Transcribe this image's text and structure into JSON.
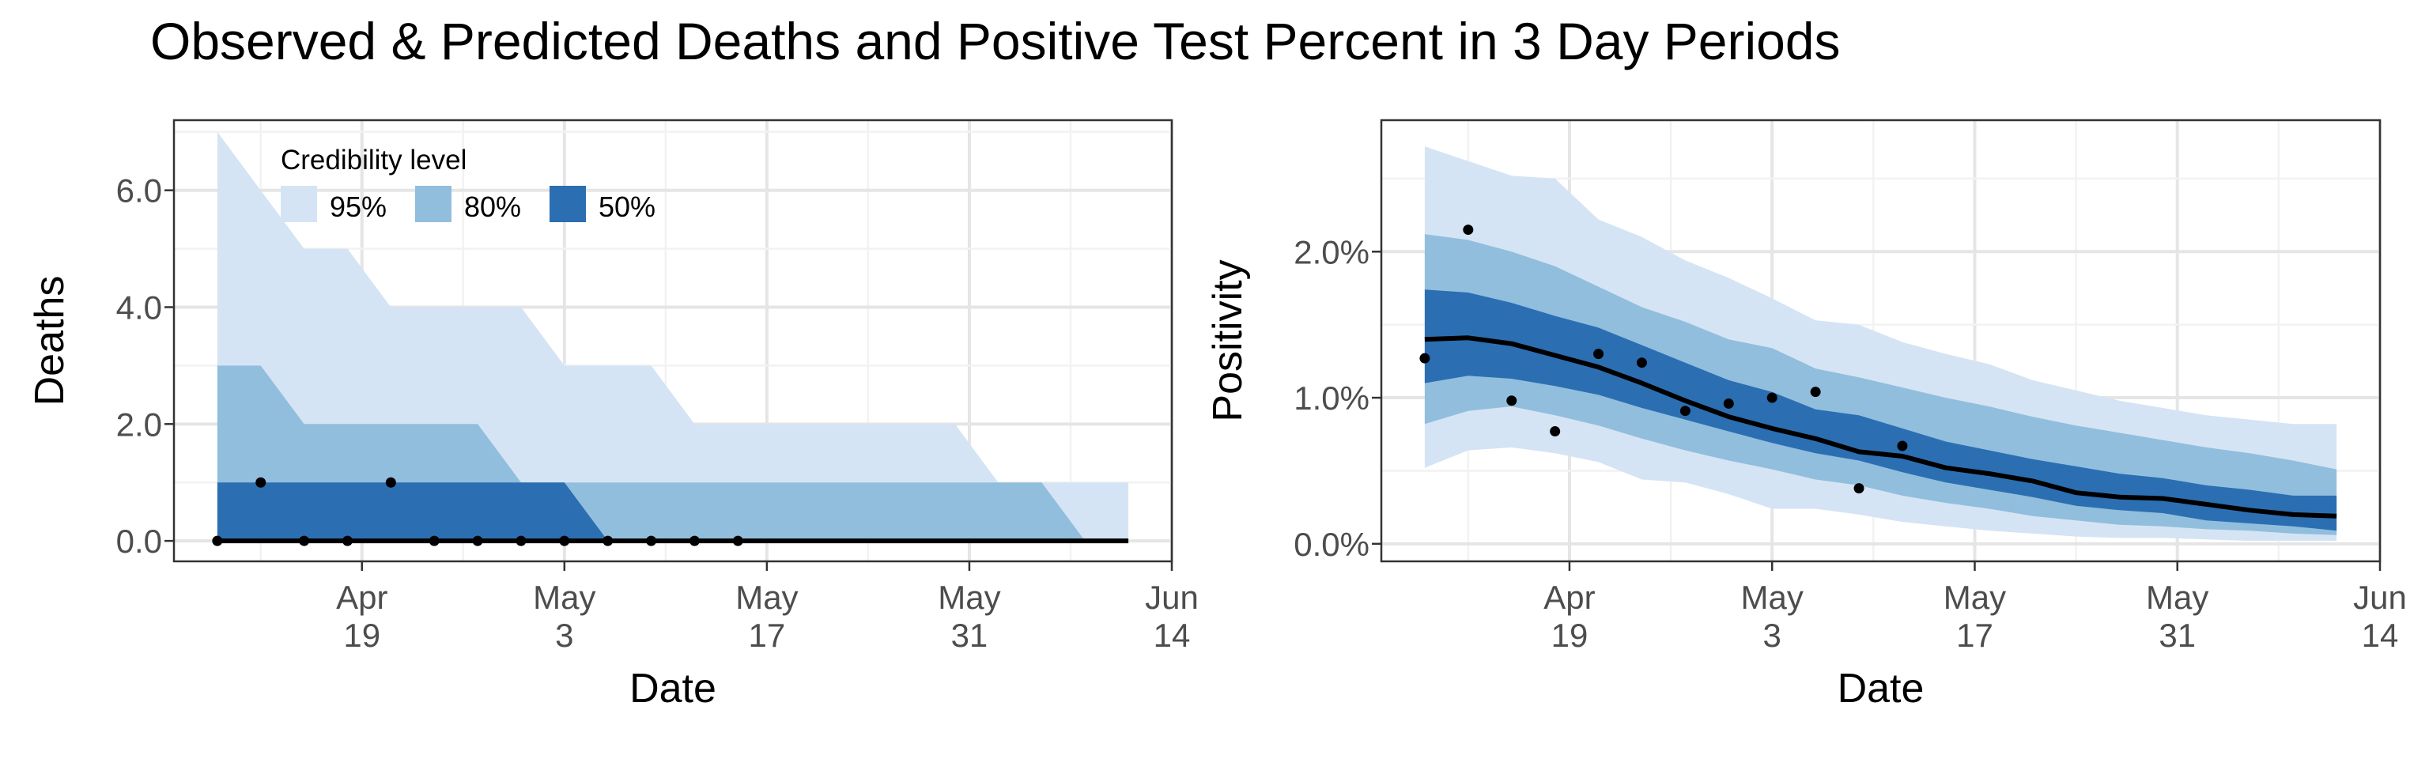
{
  "title": "Observed & Predicted Deaths and Positive Test Percent in 3 Day Periods",
  "colors": {
    "band95": "#d5e4f4",
    "band80": "#92bedd",
    "band50": "#2b6fb2",
    "median": "#000000",
    "points": "#000000",
    "grid_major": "#e5e5e5",
    "grid_minor": "#f2f2f2"
  },
  "chart_data": [
    {
      "type": "area",
      "title": "",
      "xlabel": "Date",
      "ylabel": "Deaths",
      "x_range": [
        "2020-04-06",
        "2020-06-14"
      ],
      "ylim": [
        -0.35,
        7.2
      ],
      "step": true,
      "x_ticks": [
        {
          "date": "2020-04-19",
          "month": "Apr",
          "day": "19"
        },
        {
          "date": "2020-05-03",
          "month": "May",
          "day": "3"
        },
        {
          "date": "2020-05-17",
          "month": "May",
          "day": "17"
        },
        {
          "date": "2020-05-31",
          "month": "May",
          "day": "31"
        },
        {
          "date": "2020-06-14",
          "month": "Jun",
          "day": "14"
        }
      ],
      "y_ticks": [
        {
          "value": 0,
          "label": "0.0"
        },
        {
          "value": 2,
          "label": "2.0"
        },
        {
          "value": 4,
          "label": "4.0"
        },
        {
          "value": 6,
          "label": "6.0"
        }
      ],
      "grid": true,
      "legend": {
        "title": "Credibility level",
        "placement": "top-left inside",
        "items": [
          {
            "label": "95%",
            "color": "#d5e4f4"
          },
          {
            "label": "80%",
            "color": "#92bedd"
          },
          {
            "label": "50%",
            "color": "#2b6fb2"
          }
        ]
      },
      "x": [
        "2020-04-09",
        "2020-04-12",
        "2020-04-15",
        "2020-04-18",
        "2020-04-21",
        "2020-04-24",
        "2020-04-27",
        "2020-04-30",
        "2020-05-03",
        "2020-05-06",
        "2020-05-09",
        "2020-05-12",
        "2020-05-15",
        "2020-05-18",
        "2020-05-21",
        "2020-05-24",
        "2020-05-27",
        "2020-05-30",
        "2020-06-02",
        "2020-06-05",
        "2020-06-08",
        "2020-06-11"
      ],
      "bands": [
        {
          "level": "95%",
          "lower": [
            0,
            0,
            0,
            0,
            0,
            0,
            0,
            0,
            0,
            0,
            0,
            0,
            0,
            0,
            0,
            0,
            0,
            0,
            0,
            0,
            0,
            0
          ],
          "upper": [
            7,
            6,
            5,
            5,
            4,
            4,
            4,
            4,
            3,
            3,
            3,
            2,
            2,
            2,
            2,
            2,
            2,
            2,
            1,
            1,
            1,
            1
          ]
        },
        {
          "level": "80%",
          "lower": [
            0,
            0,
            0,
            0,
            0,
            0,
            0,
            0,
            0,
            0,
            0,
            0,
            0,
            0,
            0,
            0,
            0,
            0,
            0,
            0,
            0,
            0
          ],
          "upper": [
            3,
            3,
            2,
            2,
            2,
            2,
            2,
            1,
            1,
            1,
            1,
            1,
            1,
            1,
            1,
            1,
            1,
            1,
            1,
            1,
            0,
            0
          ]
        },
        {
          "level": "50%",
          "lower": [
            0,
            0,
            0,
            0,
            0,
            0,
            0,
            0,
            0,
            0,
            0,
            0,
            0,
            0,
            0,
            0,
            0,
            0,
            0,
            0,
            0,
            0
          ],
          "upper": [
            1,
            1,
            1,
            1,
            1,
            1,
            1,
            1,
            1,
            0,
            0,
            0,
            0,
            0,
            0,
            0,
            0,
            0,
            0,
            0,
            0,
            0
          ]
        }
      ],
      "median": [
        0,
        0,
        0,
        0,
        0,
        0,
        0,
        0,
        0,
        0,
        0,
        0,
        0,
        0,
        0,
        0,
        0,
        0,
        0,
        0,
        0,
        0
      ],
      "observed": {
        "x": [
          "2020-04-09",
          "2020-04-12",
          "2020-04-15",
          "2020-04-18",
          "2020-04-21",
          "2020-04-24",
          "2020-04-27",
          "2020-04-30",
          "2020-05-03",
          "2020-05-06",
          "2020-05-09",
          "2020-05-12",
          "2020-05-15"
        ],
        "y": [
          0,
          1,
          0,
          0,
          1,
          0,
          0,
          0,
          0,
          0,
          0,
          0,
          0
        ]
      }
    },
    {
      "type": "area",
      "title": "",
      "xlabel": "Date",
      "ylabel": "Positivity",
      "x_range": [
        "2020-04-06",
        "2020-06-14"
      ],
      "ylim": [
        -0.12,
        2.9
      ],
      "step": false,
      "x_ticks": [
        {
          "date": "2020-04-19",
          "month": "Apr",
          "day": "19"
        },
        {
          "date": "2020-05-03",
          "month": "May",
          "day": "3"
        },
        {
          "date": "2020-05-17",
          "month": "May",
          "day": "17"
        },
        {
          "date": "2020-05-31",
          "month": "May",
          "day": "31"
        },
        {
          "date": "2020-06-14",
          "month": "Jun",
          "day": "14"
        }
      ],
      "y_ticks": [
        {
          "value": 0,
          "label": "0.0%"
        },
        {
          "value": 1,
          "label": "1.0%"
        },
        {
          "value": 2,
          "label": "2.0%"
        }
      ],
      "grid": true,
      "x": [
        "2020-04-09",
        "2020-04-12",
        "2020-04-15",
        "2020-04-18",
        "2020-04-21",
        "2020-04-24",
        "2020-04-27",
        "2020-04-30",
        "2020-05-03",
        "2020-05-06",
        "2020-05-09",
        "2020-05-12",
        "2020-05-15",
        "2020-05-18",
        "2020-05-21",
        "2020-05-24",
        "2020-05-27",
        "2020-05-30",
        "2020-06-02",
        "2020-06-05",
        "2020-06-08",
        "2020-06-11"
      ],
      "bands": [
        {
          "level": "95%",
          "lower": [
            0.52,
            0.64,
            0.66,
            0.62,
            0.56,
            0.44,
            0.42,
            0.34,
            0.24,
            0.24,
            0.2,
            0.15,
            0.12,
            0.09,
            0.07,
            0.05,
            0.04,
            0.04,
            0.03,
            0.02,
            0.02,
            0.02
          ],
          "upper": [
            2.72,
            2.62,
            2.52,
            2.5,
            2.22,
            2.1,
            1.94,
            1.82,
            1.68,
            1.53,
            1.5,
            1.38,
            1.3,
            1.23,
            1.12,
            1.05,
            0.98,
            0.93,
            0.88,
            0.85,
            0.82,
            0.82
          ]
        },
        {
          "level": "80%",
          "lower": [
            0.82,
            0.91,
            0.94,
            0.88,
            0.81,
            0.72,
            0.64,
            0.57,
            0.51,
            0.44,
            0.4,
            0.33,
            0.28,
            0.24,
            0.19,
            0.16,
            0.13,
            0.12,
            0.1,
            0.09,
            0.07,
            0.06
          ],
          "upper": [
            2.12,
            2.08,
            2.0,
            1.9,
            1.76,
            1.62,
            1.52,
            1.4,
            1.34,
            1.2,
            1.14,
            1.07,
            1.0,
            0.94,
            0.87,
            0.81,
            0.76,
            0.71,
            0.66,
            0.62,
            0.57,
            0.51
          ]
        },
        {
          "level": "50%",
          "lower": [
            1.1,
            1.15,
            1.13,
            1.08,
            1.02,
            0.93,
            0.85,
            0.77,
            0.69,
            0.62,
            0.57,
            0.49,
            0.42,
            0.37,
            0.32,
            0.26,
            0.23,
            0.21,
            0.16,
            0.14,
            0.12,
            0.09
          ],
          "upper": [
            1.74,
            1.72,
            1.65,
            1.56,
            1.48,
            1.36,
            1.24,
            1.12,
            1.04,
            0.92,
            0.88,
            0.79,
            0.7,
            0.64,
            0.58,
            0.53,
            0.48,
            0.45,
            0.4,
            0.37,
            0.33,
            0.33
          ]
        },
        {
          "level": "median-only",
          "lower": [],
          "upper": []
        }
      ],
      "median": [
        1.4,
        1.41,
        1.37,
        1.29,
        1.21,
        1.1,
        0.98,
        0.87,
        0.79,
        0.72,
        0.63,
        0.6,
        0.52,
        0.48,
        0.43,
        0.35,
        0.32,
        0.31,
        0.27,
        0.23,
        0.2,
        0.19
      ],
      "observed": {
        "x": [
          "2020-04-09",
          "2020-04-12",
          "2020-04-15",
          "2020-04-18",
          "2020-04-21",
          "2020-04-24",
          "2020-04-27",
          "2020-04-30",
          "2020-05-03",
          "2020-05-06",
          "2020-05-09",
          "2020-05-12",
          "2020-05-15"
        ],
        "y": [
          1.27,
          2.15,
          0.98,
          0.77,
          1.3,
          1.24,
          0.91,
          0.96,
          1.0,
          1.04,
          0.38,
          0.67,
          null
        ]
      }
    }
  ]
}
